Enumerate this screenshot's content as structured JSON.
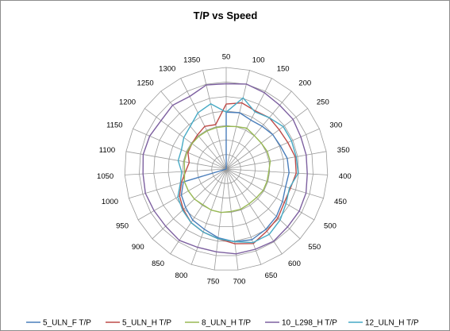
{
  "chart_data": {
    "type": "radar",
    "title": "T/P vs Speed",
    "categories": [
      "50",
      "100",
      "150",
      "200",
      "250",
      "300",
      "350",
      "400",
      "450",
      "500",
      "550",
      "600",
      "650",
      "700",
      "750",
      "800",
      "850",
      "900",
      "950",
      "1000",
      "1050",
      "1100",
      "1150",
      "1200",
      "1250",
      "1300",
      "1350"
    ],
    "rmax": 100,
    "rings": 7,
    "grid": true,
    "legend_position": "bottom",
    "series": [
      {
        "name": "5_ULN_F T/P",
        "color": "#4a7ebb",
        "values": [
          56,
          57,
          54,
          55,
          57,
          58,
          61,
          62,
          61,
          64,
          68,
          71,
          74,
          72,
          68,
          63,
          60,
          55,
          51,
          44,
          0,
          0,
          0,
          0,
          0,
          0,
          0
        ]
      },
      {
        "name": "5_ULN_H T/P",
        "color": "#be4b48",
        "values": [
          64,
          67,
          64,
          66,
          65,
          66,
          69,
          69,
          66,
          66,
          70,
          73,
          78,
          74,
          69,
          66,
          63,
          58,
          53,
          46,
          40,
          37,
          41,
          42,
          44,
          47,
          45
        ]
      },
      {
        "name": "8_ULN_H T/P",
        "color": "#98b954",
        "values": [
          42,
          43,
          45,
          43,
          43,
          44,
          44,
          42,
          42,
          42,
          41,
          41,
          42,
          42,
          43,
          43,
          42,
          43,
          43,
          43,
          41,
          42,
          42,
          42,
          42,
          42,
          42
        ]
      },
      {
        "name": "10_L298_H T/P",
        "color": "#7d60a0",
        "values": [
          84,
          86,
          84,
          82,
          82,
          80,
          80,
          80,
          82,
          83,
          83,
          85,
          84,
          84,
          82,
          82,
          84,
          82,
          82,
          83,
          82,
          83,
          82,
          80,
          82,
          80,
          85
        ]
      },
      {
        "name": "12_ULN_H T/P",
        "color": "#46aac5",
        "values": [
          56,
          72,
          63,
          66,
          70,
          70,
          70,
          71,
          65,
          68,
          73,
          77,
          77,
          72,
          69,
          66,
          63,
          59,
          55,
          47,
          44,
          48,
          48,
          52,
          55,
          62,
          66
        ]
      }
    ]
  }
}
